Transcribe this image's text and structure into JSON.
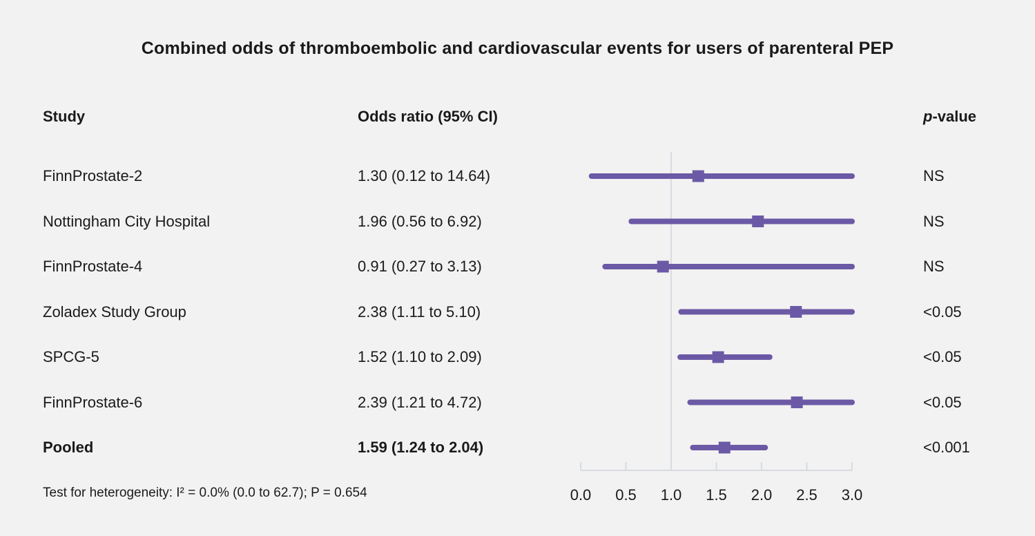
{
  "title": "Combined odds of thromboembolic and cardiovascular events for users of parenteral PEP",
  "headers": {
    "study": "Study",
    "odds_ratio": "Odds ratio (95% CI)",
    "p_italic": "p",
    "p_rest": "-value"
  },
  "footnote": "Test for heterogeneity: I² = 0.0% (0.0 to 62.7); P = 0.654",
  "colors": {
    "background": "#f2f2f2",
    "marker_purple": "#6c59a6",
    "axis_gray": "#d7dbe0",
    "text": "#1a1a1a"
  },
  "chart_data": {
    "type": "forest",
    "title": "Combined odds of thromboembolic and cardiovascular events for users of parenteral PEP",
    "x_axis": {
      "ticks": [
        0.0,
        0.5,
        1.0,
        1.5,
        2.0,
        2.5,
        3.0
      ],
      "tick_labels": [
        "0.0",
        "0.5",
        "1.0",
        "1.5",
        "2.0",
        "2.5",
        "3.0"
      ],
      "range": [
        0.0,
        3.0
      ],
      "reference_line": 1.0,
      "clip_max": 3.0
    },
    "studies": [
      {
        "study": "FinnProstate-2",
        "or": 1.3,
        "ci_low": 0.12,
        "ci_high": 14.64,
        "or_label": "1.30 (0.12 to 14.64)",
        "p": "NS",
        "bold": false
      },
      {
        "study": "Nottingham City Hospital",
        "or": 1.96,
        "ci_low": 0.56,
        "ci_high": 6.92,
        "or_label": "1.96 (0.56 to 6.92)",
        "p": "NS",
        "bold": false
      },
      {
        "study": "FinnProstate-4",
        "or": 0.91,
        "ci_low": 0.27,
        "ci_high": 3.13,
        "or_label": "0.91 (0.27 to 3.13)",
        "p": "NS",
        "bold": false
      },
      {
        "study": "Zoladex Study Group",
        "or": 2.38,
        "ci_low": 1.11,
        "ci_high": 5.1,
        "or_label": "2.38 (1.11 to 5.10)",
        "p": "<0.05",
        "bold": false
      },
      {
        "study": "SPCG-5",
        "or": 1.52,
        "ci_low": 1.1,
        "ci_high": 2.09,
        "or_label": "1.52 (1.10 to 2.09)",
        "p": "<0.05",
        "bold": false
      },
      {
        "study": "FinnProstate-6",
        "or": 2.39,
        "ci_low": 1.21,
        "ci_high": 4.72,
        "or_label": "2.39 (1.21 to 4.72)",
        "p": "<0.05",
        "bold": false
      },
      {
        "study": "Pooled",
        "or": 1.59,
        "ci_low": 1.24,
        "ci_high": 2.04,
        "or_label": "1.59 (1.24 to 2.04)",
        "p": "<0.001",
        "bold": true
      }
    ]
  }
}
